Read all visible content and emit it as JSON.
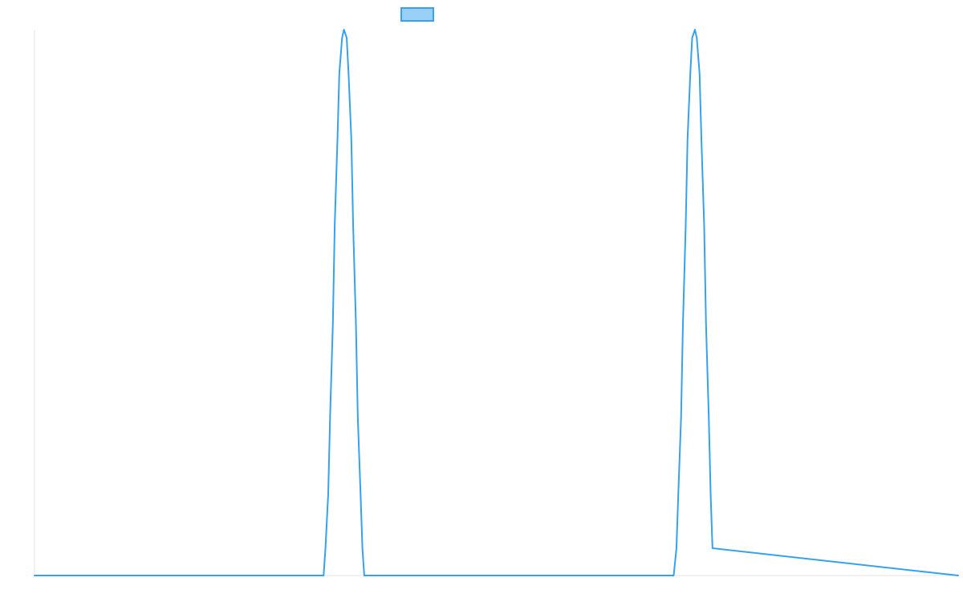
{
  "chart_data": {
    "type": "line",
    "title": "",
    "xlabel": "",
    "ylabel": "",
    "xlim": [
      0,
      1000
    ],
    "ylim": [
      0,
      1
    ],
    "grid": false,
    "legend": {
      "position": "top-center",
      "entries": [
        {
          "label": "",
          "color": "#36a2eb",
          "fill": "#9ad0f5"
        }
      ]
    },
    "series": [
      {
        "color": "#36a2eb",
        "x": [
          0,
          313,
          315,
          318,
          320,
          323,
          325,
          328,
          330,
          333,
          335,
          338,
          340,
          343,
          345,
          348,
          350,
          353,
          355,
          357,
          690,
          692,
          695,
          697,
          700,
          702,
          705,
          707,
          710,
          712,
          715,
          717,
          720,
          722,
          725,
          727,
          730,
          732,
          734,
          1000
        ],
        "values": [
          0,
          0,
          0.05,
          0.15,
          0.29,
          0.46,
          0.64,
          0.8,
          0.92,
          0.985,
          1.0,
          0.985,
          0.92,
          0.8,
          0.64,
          0.46,
          0.29,
          0.15,
          0.05,
          0,
          0,
          0,
          0.05,
          0.15,
          0.29,
          0.46,
          0.64,
          0.8,
          0.92,
          0.985,
          1.0,
          0.985,
          0.92,
          0.8,
          0.64,
          0.46,
          0.29,
          0.15,
          0.05,
          0
        ]
      }
    ]
  }
}
